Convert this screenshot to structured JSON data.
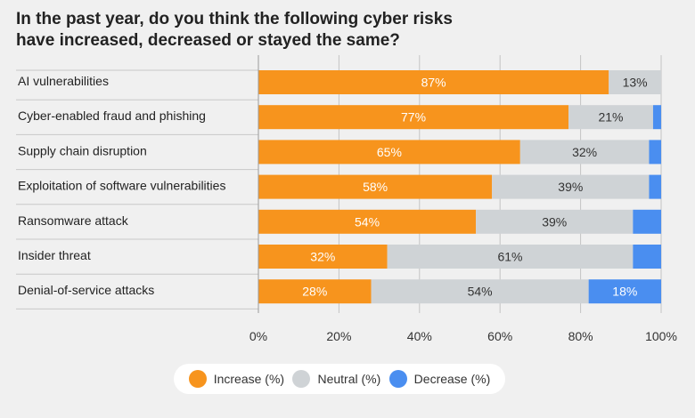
{
  "title": "In the past year, do you think the following cyber risks have increased, decreased or stayed the same?",
  "colors": {
    "increase": "#f7941d",
    "neutral": "#cfd3d6",
    "decrease": "#4a8ef0",
    "background": "#f0f0f0"
  },
  "chart_data": {
    "type": "bar",
    "orientation": "horizontal",
    "stacked": true,
    "categories": [
      "AI vulnerabilities",
      "Cyber-enabled fraud and phishing",
      "Supply chain disruption",
      "Exploitation of software vulnerabilities",
      "Ransomware attack",
      "Insider threat",
      "Denial-of-service attacks"
    ],
    "series": [
      {
        "name": "Increase (%)",
        "values": [
          87,
          77,
          65,
          58,
          54,
          32,
          28
        ],
        "labels": [
          "87%",
          "77%",
          "65%",
          "58%",
          "54%",
          "32%",
          "28%"
        ]
      },
      {
        "name": "Neutral (%)",
        "values": [
          13,
          21,
          32,
          39,
          39,
          61,
          54
        ],
        "labels": [
          "13%",
          "21%",
          "32%",
          "39%",
          "39%",
          "61%",
          "54%"
        ]
      },
      {
        "name": "Decrease (%)",
        "values": [
          0.5,
          2,
          3,
          3,
          7,
          7,
          18
        ],
        "labels": [
          "",
          "",
          "",
          "",
          "",
          "",
          "18%"
        ]
      }
    ],
    "xlim": [
      0,
      100
    ],
    "xticks": [
      "0%",
      "20%",
      "40%",
      "60%",
      "80%",
      "100%"
    ],
    "xlabel": "",
    "ylabel": "",
    "grid": true,
    "legend_position": "bottom-center"
  }
}
